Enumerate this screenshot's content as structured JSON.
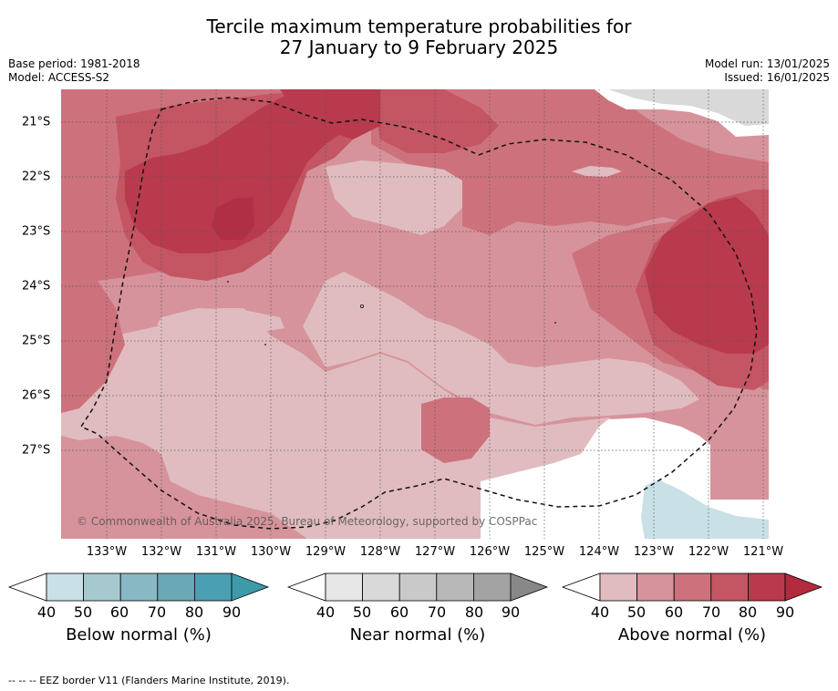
{
  "title": {
    "line1": "Tercile maximum temperature probabilities for",
    "line2": "27 January to 9 February 2025"
  },
  "header_left": {
    "base_period": "Base period: 1981-2018",
    "model": "Model: ACCESS-S2"
  },
  "header_right": {
    "model_run": "Model run: 13/01/2025",
    "issued": "Issued: 16/01/2025"
  },
  "map": {
    "copyright": "© Commonwealth of Australia 2025, Bureau of Meteorology, supported by COSPPac",
    "longitude_labels": [
      "133°W",
      "132°W",
      "131°W",
      "130°W",
      "129°W",
      "128°W",
      "127°W",
      "126°W",
      "125°W",
      "124°W",
      "123°W",
      "122°W",
      "121°W"
    ],
    "latitude_labels": [
      "21°S",
      "22°S",
      "23°S",
      "24°S",
      "25°S",
      "26°S",
      "27°S"
    ],
    "colors": {
      "above_40": "#e0bcc0",
      "above_50": "#d6939b",
      "above_60": "#cd727c",
      "above_70": "#c45563",
      "above_80": "#b93a4c",
      "near_50": "#d9d9d9",
      "below_40": "#c8e0e6",
      "no_signal": "#ffffff"
    }
  },
  "legends": [
    {
      "name": "below",
      "title": "Below normal (%)",
      "ticks": [
        "40",
        "50",
        "60",
        "70",
        "80",
        "90"
      ],
      "colors": [
        "#ffffff",
        "#c8e0e6",
        "#a6c9d0",
        "#88b8c3",
        "#6aa8b6",
        "#4aa0b2",
        "#3e9aa8"
      ]
    },
    {
      "name": "near",
      "title": "Near normal (%)",
      "ticks": [
        "40",
        "50",
        "60",
        "70",
        "80",
        "90"
      ],
      "colors": [
        "#ffffff",
        "#e6e6e6",
        "#d9d9d9",
        "#c9c9c9",
        "#b8b8b8",
        "#a3a3a3",
        "#888888"
      ]
    },
    {
      "name": "above",
      "title": "Above normal (%)",
      "ticks": [
        "40",
        "50",
        "60",
        "70",
        "80",
        "90"
      ],
      "colors": [
        "#ffffff",
        "#e0bcc0",
        "#d6939b",
        "#cd727c",
        "#c45563",
        "#b93a4c",
        "#b22a3e"
      ]
    }
  ],
  "footnote": "--  --  -- EEZ border V11 (Flanders Marine Institute, 2019)."
}
